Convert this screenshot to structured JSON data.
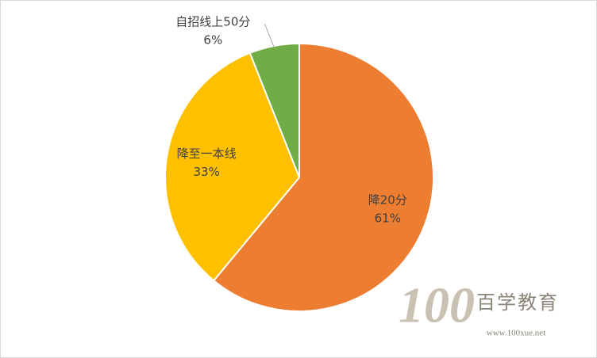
{
  "chart_data": {
    "type": "pie",
    "categories": [
      "降20分",
      "降至一本线",
      "自招线上50分"
    ],
    "values": [
      61,
      33,
      6
    ],
    "value_labels": [
      "61%",
      "33%",
      "6%"
    ],
    "colors": [
      "#ed7d31",
      "#ffc000",
      "#70ad47"
    ]
  },
  "watermark": {
    "logo": "100",
    "name": "百学教育",
    "url": "www.100xue.net"
  }
}
